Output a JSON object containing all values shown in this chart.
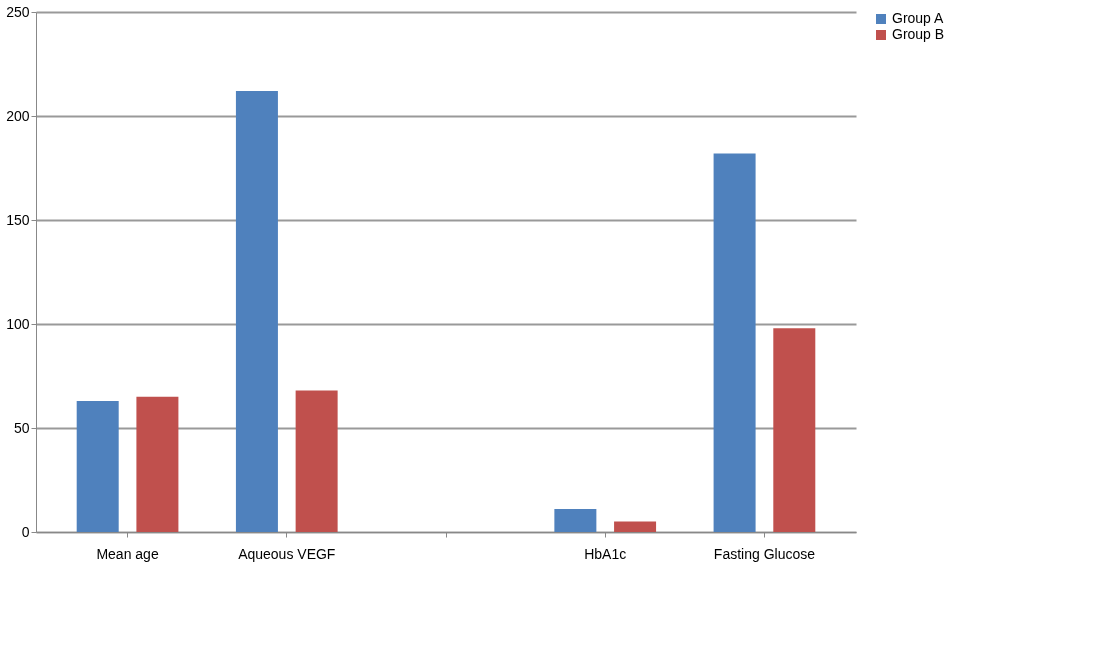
{
  "chart_data": {
    "type": "bar",
    "categories": [
      "Mean age",
      "Aqueous VEGF",
      null,
      "HbA1c",
      "Fasting Glucose"
    ],
    "series": [
      {
        "name": "Group A",
        "color": "#4f81bd",
        "values": [
          63,
          212,
          null,
          11,
          182
        ]
      },
      {
        "name": "Group B",
        "color": "#c0504d",
        "values": [
          65,
          68,
          null,
          5,
          98
        ]
      }
    ],
    "ylim": [
      0,
      250
    ],
    "yticks": [
      0,
      50,
      100,
      150,
      200,
      250
    ],
    "grid": "y",
    "legend": "right"
  }
}
